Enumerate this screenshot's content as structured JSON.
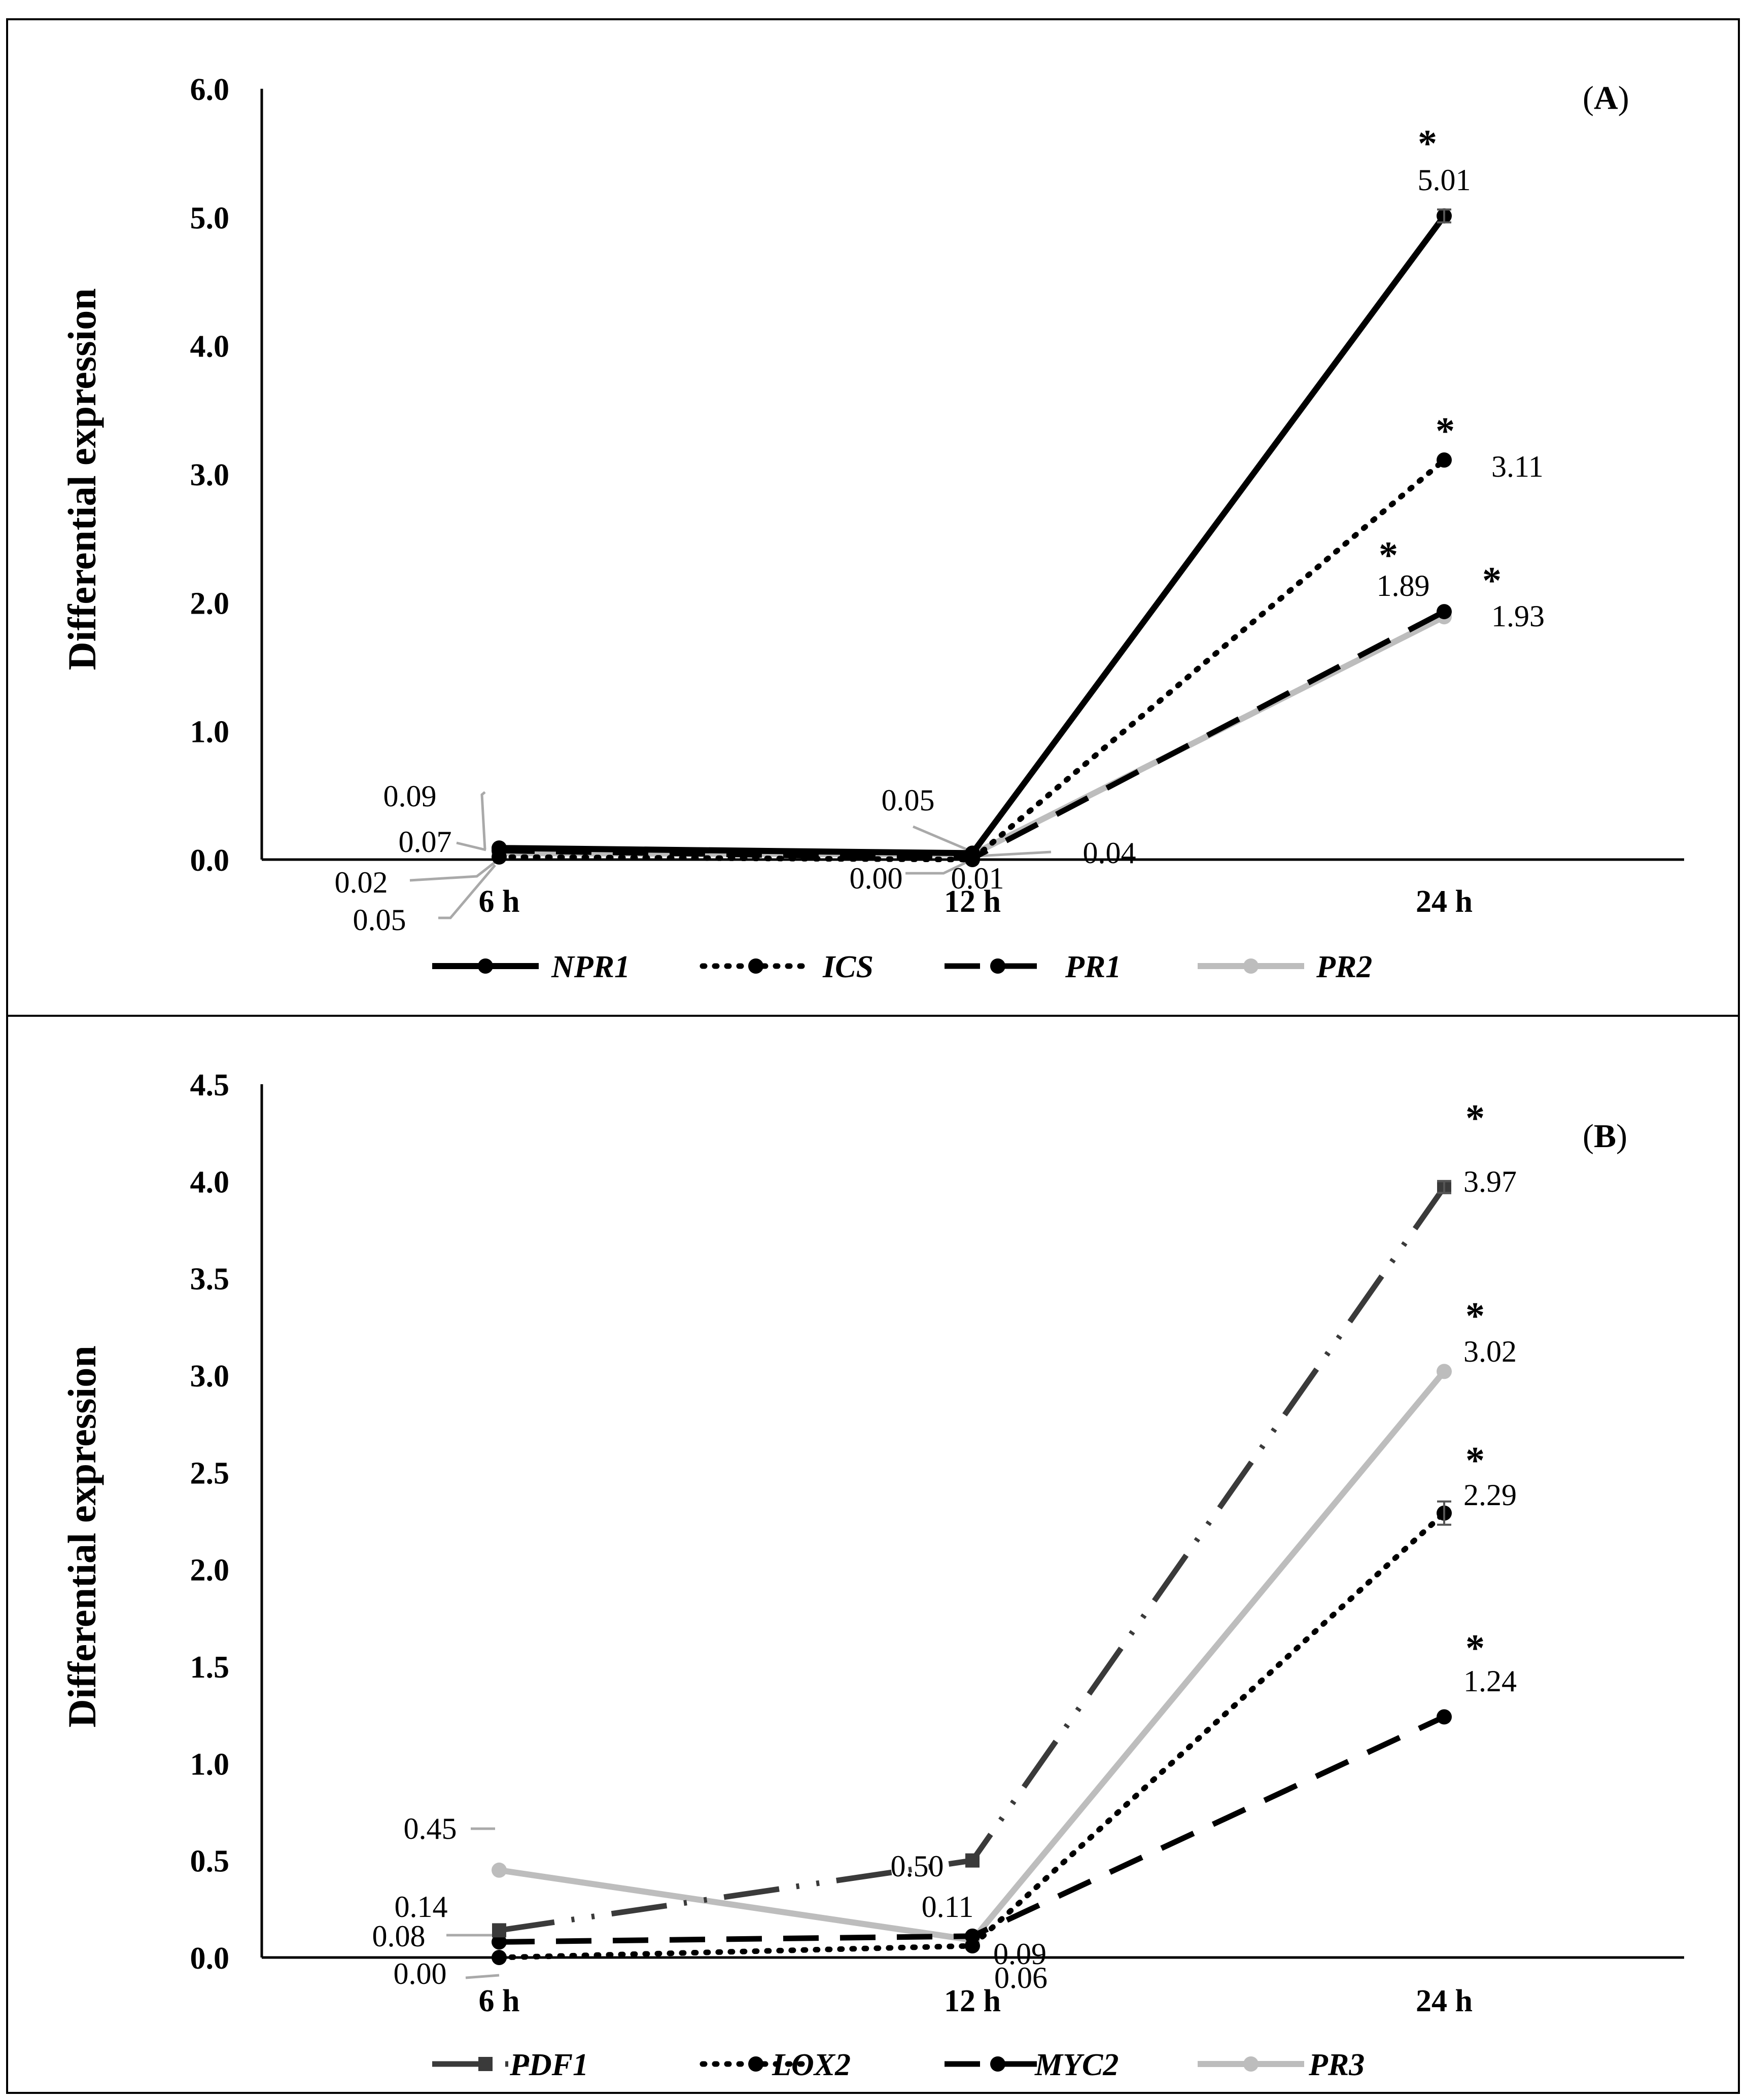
{
  "chart_data": [
    {
      "type": "line",
      "panel_label": {
        "open": "(",
        "letter": "A",
        "close": ")"
      },
      "ylabel": "Differential expression",
      "xlabel": "",
      "categories": [
        "6 h",
        "12 h",
        "24 h"
      ],
      "ylim": [
        0,
        6
      ],
      "yticks": [
        "0.0",
        "1.0",
        "2.0",
        "3.0",
        "4.0",
        "5.0",
        "6.0"
      ],
      "grid": false,
      "legend_position": "bottom",
      "series": [
        {
          "name": "NPR1",
          "values": [
            0.09,
            0.05,
            5.01
          ],
          "labels": [
            "0.09",
            "0.05",
            "5.01"
          ],
          "significant": [
            false,
            false,
            true
          ],
          "color": "#000000",
          "style": "solid",
          "marker": "circle"
        },
        {
          "name": "ICS",
          "values": [
            0.02,
            0.0,
            3.11
          ],
          "labels": [
            "0.02",
            "0.00",
            "3.11"
          ],
          "significant": [
            false,
            false,
            true
          ],
          "color": "#000000",
          "style": "dotted",
          "marker": "circle"
        },
        {
          "name": "PR1",
          "values": [
            0.07,
            0.01,
            1.93
          ],
          "labels": [
            "0.07",
            "0.01",
            "1.93"
          ],
          "significant": [
            false,
            false,
            true
          ],
          "color": "#000000",
          "style": "dashed",
          "marker": "circle"
        },
        {
          "name": "PR2",
          "values": [
            0.05,
            0.04,
            1.89
          ],
          "labels": [
            "0.05",
            "0.04",
            "1.89"
          ],
          "significant": [
            false,
            false,
            true
          ],
          "color": "#bdbdbd",
          "style": "solid",
          "marker": "circle"
        }
      ],
      "significance_marker": "*"
    },
    {
      "type": "line",
      "panel_label": {
        "open": "(",
        "letter": "B",
        "close": ")"
      },
      "ylabel": "Differential expression",
      "xlabel": "",
      "categories": [
        "6 h",
        "12 h",
        "24 h"
      ],
      "ylim": [
        0,
        4.5
      ],
      "yticks": [
        "0.0",
        "0.5",
        "1.0",
        "1.5",
        "2.0",
        "2.5",
        "3.0",
        "3.5",
        "4.0",
        "4.5"
      ],
      "grid": false,
      "legend_position": "bottom",
      "series": [
        {
          "name": "PDF1",
          "values": [
            0.14,
            0.5,
            3.97
          ],
          "labels": [
            "0.14",
            "0.50",
            "3.97"
          ],
          "significant": [
            false,
            false,
            true
          ],
          "color": "#3a3a3a",
          "style": "dashdotdot",
          "marker": "square"
        },
        {
          "name": "LOX2",
          "values": [
            0.0,
            0.06,
            2.29
          ],
          "labels": [
            "0.00",
            "0.06",
            "2.29"
          ],
          "significant": [
            false,
            false,
            true
          ],
          "color": "#000000",
          "style": "dotted",
          "marker": "circle"
        },
        {
          "name": "MYC2",
          "values": [
            0.08,
            0.11,
            1.24
          ],
          "labels": [
            "0.08",
            "0.11",
            "1.24"
          ],
          "significant": [
            false,
            false,
            true
          ],
          "color": "#000000",
          "style": "dashed",
          "marker": "circle"
        },
        {
          "name": "PR3",
          "values": [
            0.45,
            0.09,
            3.02
          ],
          "labels": [
            "0.45",
            "0.09",
            "3.02"
          ],
          "significant": [
            false,
            false,
            true
          ],
          "color": "#bdbdbd",
          "style": "solid",
          "marker": "circle"
        }
      ],
      "significance_marker": "*"
    }
  ]
}
